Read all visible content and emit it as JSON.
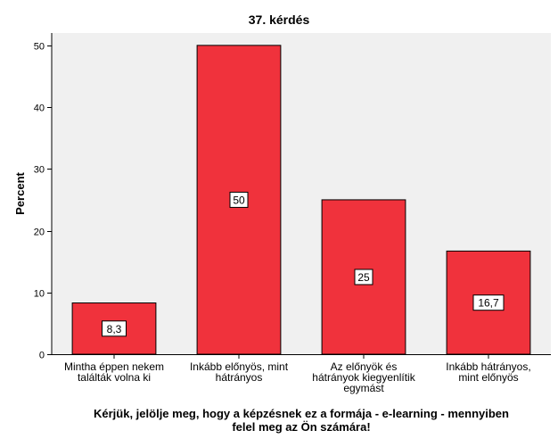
{
  "chart_data": {
    "type": "bar",
    "title": "37. kérdés",
    "ylabel": "Percent",
    "xlabel_lines": [
      "Kérjük, jelölje meg, hogy a képzésnek ez a formája - e-learning - mennyiben",
      "felel meg az Ön számára!"
    ],
    "categories": [
      [
        "Mintha éppen nekem",
        "találták volna ki"
      ],
      [
        "Inkább előnyös, mint",
        "hátrányos"
      ],
      [
        "Az előnyök és",
        "hátrányok kiegyenlítik",
        "egymást"
      ],
      [
        "Inkább hátrányos,",
        "mint előnyös"
      ]
    ],
    "values": [
      8.3,
      50,
      25,
      16.7
    ],
    "data_labels": [
      "8,3",
      "50",
      "25",
      "16,7"
    ],
    "ylim": [
      0,
      52
    ],
    "yticks": [
      0,
      10,
      20,
      30,
      40,
      50
    ],
    "grid": false,
    "colors": {
      "bar": "#f0323c",
      "bar_border": "#000000",
      "plot_background": "#f0f0f0"
    }
  }
}
